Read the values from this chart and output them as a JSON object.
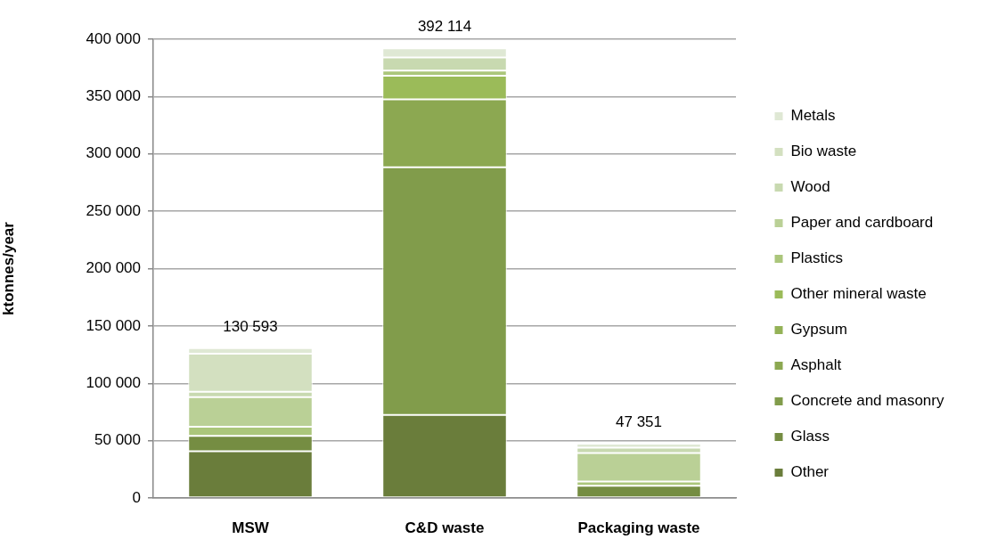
{
  "chart_data": {
    "type": "bar",
    "stacked": true,
    "ylabel": "ktonnes/year",
    "categories": [
      "MSW",
      "C&D waste",
      "Packaging waste"
    ],
    "series": [
      {
        "name": "Other",
        "color": "#6a7d3b",
        "values": [
          40693,
          72500,
          0
        ]
      },
      {
        "name": "Glass",
        "color": "#758d42",
        "values": [
          13400,
          0,
          10700
        ]
      },
      {
        "name": "Concrete and masonry",
        "color": "#819c4b",
        "values": [
          0,
          215814,
          0
        ]
      },
      {
        "name": "Asphalt",
        "color": "#8ca851",
        "values": [
          0,
          59300,
          0
        ]
      },
      {
        "name": "Gypsum",
        "color": "#94b257",
        "values": [
          0,
          0,
          0
        ]
      },
      {
        "name": "Other mineral waste",
        "color": "#9bbb59",
        "values": [
          0,
          20600,
          0
        ]
      },
      {
        "name": "Plastics",
        "color": "#abc67b",
        "values": [
          8100,
          4400,
          3600
        ]
      },
      {
        "name": "Paper and cardboard",
        "color": "#bad096",
        "values": [
          25800,
          0,
          24951
        ]
      },
      {
        "name": "Wood",
        "color": "#c8d9b0",
        "values": [
          4700,
          11400,
          4700
        ]
      },
      {
        "name": "Bio waste",
        "color": "#d3e0c0",
        "values": [
          33100,
          0,
          0
        ]
      },
      {
        "name": "Metals",
        "color": "#dfe8d4",
        "values": [
          4800,
          8100,
          3400
        ]
      }
    ],
    "totals": [
      "130 593",
      "392 114",
      "47 351"
    ],
    "ylim": [
      0,
      400000
    ],
    "yticks": [
      {
        "value": 0,
        "label": "0"
      },
      {
        "value": 50000,
        "label": "50 000"
      },
      {
        "value": 100000,
        "label": "100 000"
      },
      {
        "value": 150000,
        "label": "150 000"
      },
      {
        "value": 200000,
        "label": "200 000"
      },
      {
        "value": 250000,
        "label": "250 000"
      },
      {
        "value": 300000,
        "label": "300 000"
      },
      {
        "value": 350000,
        "label": "350 000"
      },
      {
        "value": 400000,
        "label": "400 000"
      }
    ],
    "grid": "y",
    "legend": "right"
  }
}
